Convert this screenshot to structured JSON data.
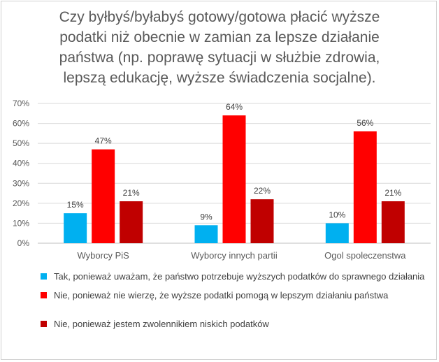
{
  "colors": {
    "series_0": "#00b0f0",
    "series_1": "#ff0000",
    "series_2": "#c00000",
    "grid": "#d9d9d9",
    "axis_text": "#595959"
  },
  "chart_data": {
    "type": "bar",
    "title": "Czy byłbyś/byłabyś gotowy/gotowa płacić wyższe podatki niż obecnie w zamian za lepsze działanie państwa (np. poprawę sytuacji w służbie zdrowia, lepszą edukację, wyższe świadczenia socjalne).",
    "title_lines": [
      "Czy byłbyś/byłabyś gotowy/gotowa płacić wyższe",
      "podatki niż obecnie w zamian za lepsze działanie",
      "państwa (np. poprawę sytuacji w służbie zdrowia,",
      "lepszą edukację, wyższe świadczenia socjalne)."
    ],
    "categories": [
      "Wyborcy PiS",
      "Wyborcy innych partii",
      "Ogol spoleczenstwa"
    ],
    "series": [
      {
        "name": "Tak, ponieważ uważam, że państwo potrzebuje wyższych podatków do sprawnego działania",
        "values": [
          15,
          9,
          10
        ]
      },
      {
        "name": "Nie, ponieważ nie wierzę, że wyższe podatki pomogą w lepszym działaniu państwa",
        "values": [
          47,
          64,
          56
        ]
      },
      {
        "name": "Nie, ponieważ jestem zwolennikiem niskich podatków",
        "values": [
          21,
          22,
          21
        ]
      }
    ],
    "value_labels": [
      [
        "15%",
        "9%",
        "10%"
      ],
      [
        "47%",
        "64%",
        "56%"
      ],
      [
        "21%",
        "22%",
        "21%"
      ]
    ],
    "y_ticks": [
      "0%",
      "10%",
      "20%",
      "30%",
      "40%",
      "50%",
      "60%",
      "70%"
    ],
    "ylim": [
      0,
      70
    ],
    "xlabel": "",
    "ylabel": "",
    "grid": true,
    "legend_position": "bottom"
  }
}
